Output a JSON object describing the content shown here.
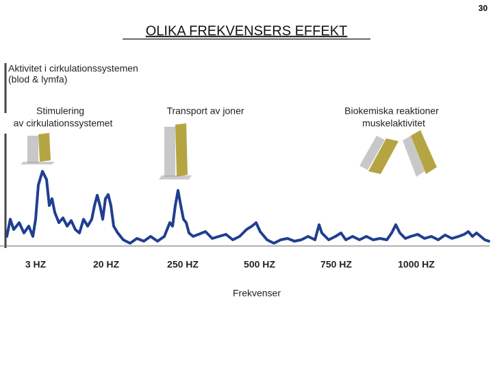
{
  "page_number": "30",
  "title": "OLIKA FREKVENSERS EFFEKT",
  "y_axis_label": [
    "Aktivitet i cirkulationssystemen",
    "(blod & lymfa)"
  ],
  "annotations": [
    [
      "Stimulering",
      "av cirkulationssystemet"
    ],
    [
      "Transport av joner"
    ],
    [
      "Biokemiska reaktioner",
      "muskelaktivitet"
    ]
  ],
  "x_labels": [
    "3 HZ",
    "20 HZ",
    "250 HZ",
    "500 HZ",
    "750 HZ",
    "1000 HZ"
  ],
  "x_axis_label": "Frekvenser"
}
